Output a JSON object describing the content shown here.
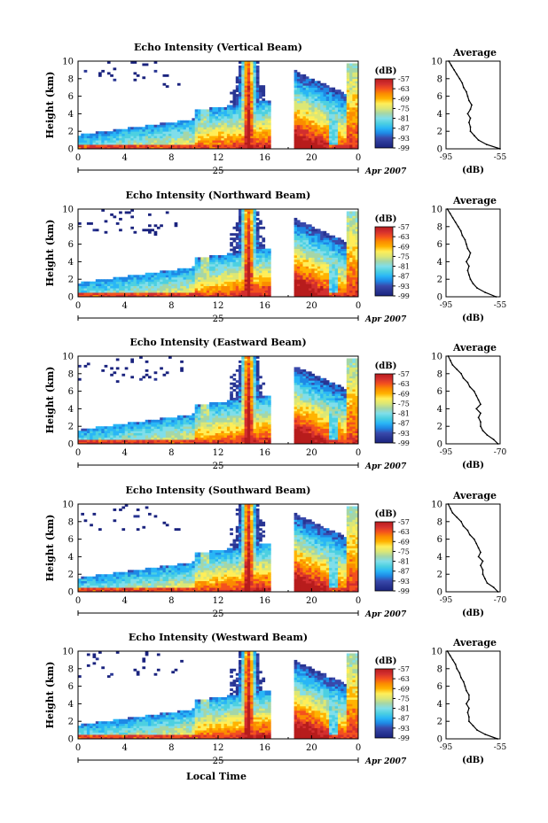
{
  "figure": {
    "common_xlabel": "Local Time",
    "date_month": "Apr 2007",
    "date_day": "25",
    "colorbar_unit": "(dB)",
    "colorbar_ticks": [
      "-57",
      "-63",
      "-69",
      "-75",
      "-81",
      "-87",
      "-93",
      "-99"
    ],
    "colors": {
      "scale": [
        "#1a237e",
        "#283593",
        "#3949ab",
        "#1e88e5",
        "#29b6f6",
        "#4dd0e1",
        "#80deea",
        "#a5d6a7",
        "#dce775",
        "#ffee58",
        "#ffb300",
        "#fb8c00",
        "#f4511e",
        "#d32f2f",
        "#b71c1c"
      ],
      "background": "#ffffff",
      "line": "#000000"
    }
  },
  "chart_data": [
    {
      "type": "heatmap",
      "title": "Echo Intensity (Vertical Beam)",
      "ylabel": "Height (km)",
      "xlabel": "Local Time",
      "xlim": [
        0,
        24
      ],
      "ylim": [
        0,
        10
      ],
      "x_ticks": [
        "0",
        "4",
        "8",
        "12",
        "16",
        "20",
        "0"
      ],
      "y_ticks": [
        "0",
        "2",
        "4",
        "6",
        "8",
        "10"
      ],
      "colorbar": {
        "label": "(dB)",
        "ticks": [
          -57,
          -63,
          -69,
          -75,
          -81,
          -87,
          -93,
          -99
        ]
      },
      "data_gap_hours": [
        16.5,
        18.5
      ],
      "profile": {
        "title": "Average",
        "xlabel": "(dB)",
        "x_ticks": [
          "-95",
          "-55"
        ],
        "y_ticks": [
          "0",
          "2",
          "4",
          "6",
          "8",
          "10"
        ],
        "xlim": [
          -95,
          -55
        ],
        "height_km": [
          0,
          0.5,
          1,
          1.5,
          2,
          2.5,
          3,
          3.5,
          4,
          4.5,
          5,
          5.5,
          6,
          6.5,
          7,
          7.5,
          8,
          8.5,
          9,
          9.5,
          10
        ],
        "db": [
          -55,
          -65,
          -71,
          -74,
          -77,
          -77,
          -78,
          -77,
          -79,
          -77,
          -76,
          -78,
          -79,
          -80,
          -82,
          -83,
          -85,
          -87,
          -89,
          -91,
          -93
        ]
      }
    },
    {
      "type": "heatmap",
      "title": "Echo Intensity (Northward Beam)",
      "ylabel": "Height (km)",
      "xlabel": "Local Time",
      "xlim": [
        0,
        24
      ],
      "ylim": [
        0,
        10
      ],
      "x_ticks": [
        "0",
        "4",
        "8",
        "12",
        "16",
        "20",
        "0"
      ],
      "y_ticks": [
        "0",
        "2",
        "4",
        "6",
        "8",
        "10"
      ],
      "colorbar": {
        "label": "(dB)",
        "ticks": [
          -57,
          -63,
          -69,
          -75,
          -81,
          -87,
          -93,
          -99
        ]
      },
      "data_gap_hours": [
        16.5,
        18.5
      ],
      "profile": {
        "title": "Average",
        "xlabel": "(dB)",
        "x_ticks": [
          "-95",
          "-55"
        ],
        "y_ticks": [
          "0",
          "2",
          "4",
          "6",
          "8",
          "10"
        ],
        "xlim": [
          -95,
          -55
        ],
        "height_km": [
          0,
          0.5,
          1,
          1.5,
          2,
          2.5,
          3,
          3.5,
          4,
          4.5,
          5,
          5.5,
          6,
          6.5,
          7,
          7.5,
          8,
          8.5,
          9,
          9.5,
          10
        ],
        "db": [
          -58,
          -66,
          -72,
          -75,
          -77,
          -78,
          -79,
          -78,
          -80,
          -78,
          -77,
          -79,
          -80,
          -81,
          -83,
          -84,
          -86,
          -88,
          -90,
          -92,
          -94
        ]
      }
    },
    {
      "type": "heatmap",
      "title": "Echo Intensity (Eastward Beam)",
      "ylabel": "Height (km)",
      "xlabel": "Local Time",
      "xlim": [
        0,
        24
      ],
      "ylim": [
        0,
        10
      ],
      "x_ticks": [
        "0",
        "4",
        "8",
        "12",
        "16",
        "20",
        "0"
      ],
      "y_ticks": [
        "0",
        "2",
        "4",
        "6",
        "8",
        "10"
      ],
      "colorbar": {
        "label": "(dB)",
        "ticks": [
          -57,
          -63,
          -69,
          -75,
          -81,
          -87,
          -93,
          -99
        ]
      },
      "data_gap_hours": [
        16.5,
        18.5
      ],
      "profile": {
        "title": "Average",
        "xlabel": "(dB)",
        "x_ticks": [
          "-95",
          "-70"
        ],
        "y_ticks": [
          "0",
          "2",
          "4",
          "6",
          "8",
          "10"
        ],
        "xlim": [
          -95,
          -70
        ],
        "height_km": [
          0,
          0.5,
          1,
          1.5,
          2,
          2.5,
          3,
          3.5,
          4,
          4.5,
          5,
          5.5,
          6,
          6.5,
          7,
          7.5,
          8,
          8.5,
          9,
          9.5,
          10
        ],
        "db": [
          -71,
          -73,
          -76,
          -78,
          -79,
          -79,
          -80,
          -79,
          -81,
          -79,
          -80,
          -81,
          -82,
          -84,
          -85,
          -87,
          -88,
          -90,
          -92,
          -93,
          -94
        ]
      }
    },
    {
      "type": "heatmap",
      "title": "Echo Intensity (Southward Beam)",
      "ylabel": "Height (km)",
      "xlabel": "Local Time",
      "xlim": [
        0,
        24
      ],
      "ylim": [
        0,
        10
      ],
      "x_ticks": [
        "0",
        "4",
        "8",
        "12",
        "16",
        "20",
        "0"
      ],
      "y_ticks": [
        "0",
        "2",
        "4",
        "6",
        "8",
        "10"
      ],
      "colorbar": {
        "label": "(dB)",
        "ticks": [
          -57,
          -63,
          -69,
          -75,
          -81,
          -87,
          -93,
          -99
        ]
      },
      "data_gap_hours": [
        16.5,
        18.5
      ],
      "profile": {
        "title": "Average",
        "xlabel": "(dB)",
        "x_ticks": [
          "-95",
          "-70"
        ],
        "y_ticks": [
          "0",
          "2",
          "4",
          "6",
          "8",
          "10"
        ],
        "xlim": [
          -95,
          -70
        ],
        "height_km": [
          0,
          0.5,
          1,
          1.5,
          2,
          2.5,
          3,
          3.5,
          4,
          4.5,
          5,
          5.5,
          6,
          6.5,
          7,
          7.5,
          8,
          8.5,
          9,
          9.5,
          10
        ],
        "db": [
          -71,
          -73,
          -76,
          -77,
          -78,
          -78,
          -79,
          -78,
          -80,
          -79,
          -80,
          -81,
          -82,
          -84,
          -85,
          -87,
          -88,
          -90,
          -92,
          -93,
          -94
        ]
      }
    },
    {
      "type": "heatmap",
      "title": "Echo Intensity (Westward Beam)",
      "ylabel": "Height (km)",
      "xlabel": "Local Time",
      "xlim": [
        0,
        24
      ],
      "ylim": [
        0,
        10
      ],
      "x_ticks": [
        "0",
        "4",
        "8",
        "12",
        "16",
        "20",
        "0"
      ],
      "y_ticks": [
        "0",
        "2",
        "4",
        "6",
        "8",
        "10"
      ],
      "colorbar": {
        "label": "(dB)",
        "ticks": [
          -57,
          -63,
          -69,
          -75,
          -81,
          -87,
          -93,
          -99
        ]
      },
      "data_gap_hours": [
        16.5,
        18.5
      ],
      "profile": {
        "title": "Average",
        "xlabel": "(dB)",
        "x_ticks": [
          "-95",
          "-55"
        ],
        "y_ticks": [
          "0",
          "2",
          "4",
          "6",
          "8",
          "10"
        ],
        "xlim": [
          -95,
          -55
        ],
        "height_km": [
          0,
          0.5,
          1,
          1.5,
          2,
          2.5,
          3,
          3.5,
          4,
          4.5,
          5,
          5.5,
          6,
          6.5,
          7,
          7.5,
          8,
          8.5,
          9,
          9.5,
          10
        ],
        "db": [
          -57,
          -66,
          -72,
          -75,
          -78,
          -78,
          -79,
          -78,
          -80,
          -78,
          -78,
          -80,
          -81,
          -82,
          -84,
          -85,
          -87,
          -88,
          -90,
          -92,
          -94
        ]
      }
    }
  ]
}
